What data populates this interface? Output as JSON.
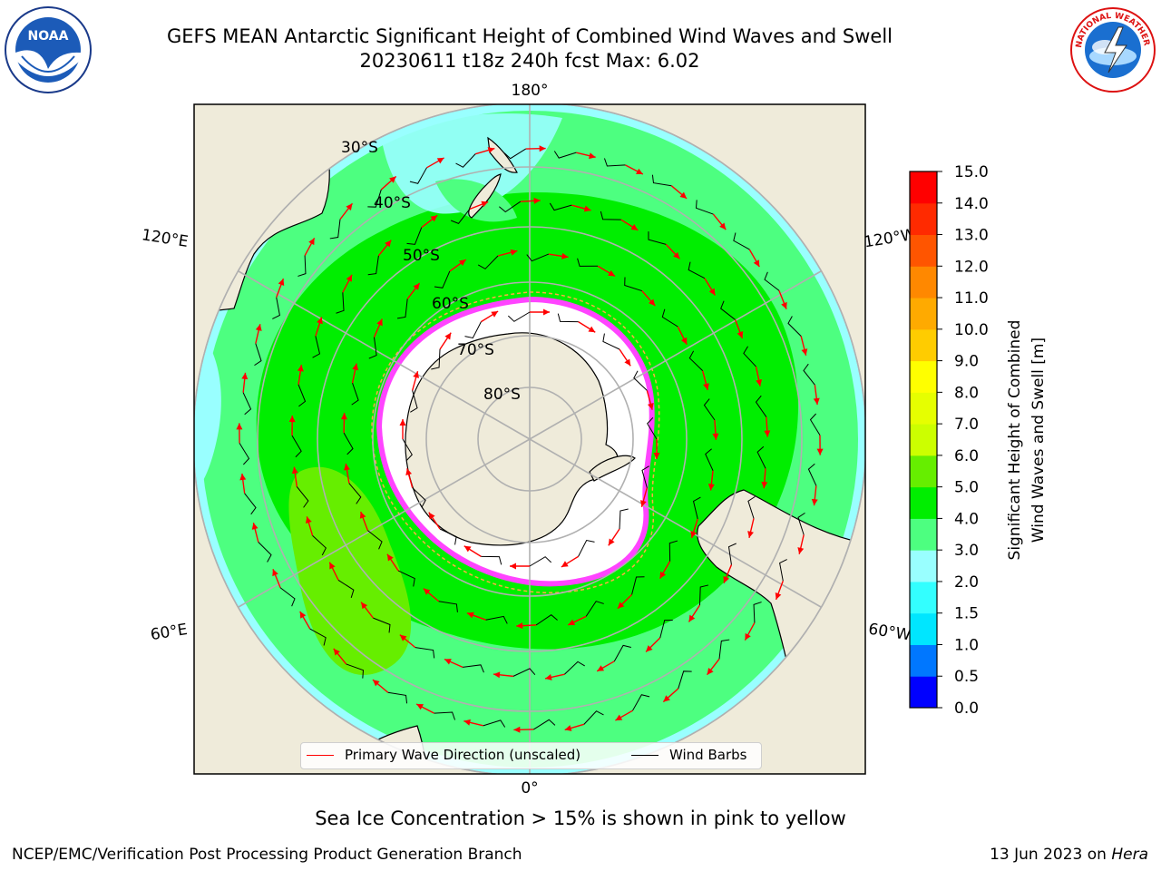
{
  "title": {
    "line1": "GEFS MEAN Antarctic Significant Height of Combined Wind Waves and Swell",
    "line2": "20230611 t18z 240h fcst   Max: 6.02"
  },
  "logos": {
    "left": {
      "name": "NOAA",
      "text": "NOAA"
    },
    "right": {
      "name": "National Weather Service",
      "text": "NATIONAL WEATHER SERVICE"
    }
  },
  "map": {
    "longitude_labels": {
      "top": "180°",
      "bottom": "0°",
      "upper_left": "120°E",
      "upper_right": "120°W",
      "lower_left": "60°E",
      "lower_right": "60°W"
    },
    "latitude_labels": [
      "30°S",
      "40°S",
      "50°S",
      "60°S",
      "70°S",
      "80°S"
    ],
    "colors": {
      "land": "#efebda",
      "ice_free_ocean": "#ffffff",
      "sea_ice": "#ff44ff",
      "wave_arrow": "#ff0000",
      "wind_barb": "#000000",
      "graticule": "#b0b0b0"
    },
    "legend": {
      "primary_wave": "Primary Wave Direction (unscaled)",
      "wind_barbs": "Wind Barbs"
    }
  },
  "colorbar": {
    "label_line1": "Significant Height of Combined",
    "label_line2": "Wind Waves and Swell [m]",
    "ticks": [
      "0.0",
      "0.5",
      "1.0",
      "1.5",
      "2.0",
      "3.0",
      "4.0",
      "5.0",
      "6.0",
      "7.0",
      "8.0",
      "9.0",
      "10.0",
      "11.0",
      "12.0",
      "13.0",
      "14.0",
      "15.0"
    ],
    "colors": [
      "#0000ff",
      "#0077ff",
      "#00e6ff",
      "#33ffff",
      "#99ffff",
      "#4dff80",
      "#00ee00",
      "#66ee00",
      "#ccff00",
      "#e6ff00",
      "#ffff00",
      "#ffcc00",
      "#ffaa00",
      "#ff8800",
      "#ff5500",
      "#ff2a00",
      "#ff0000"
    ]
  },
  "note": "Sea Ice Concentration > 15% is shown in pink to yellow",
  "footer": {
    "left": "NCEP/EMC/Verification Post Processing Product Generation Branch",
    "right_date": "13 Jun 2023 on ",
    "right_host": "Hera"
  }
}
